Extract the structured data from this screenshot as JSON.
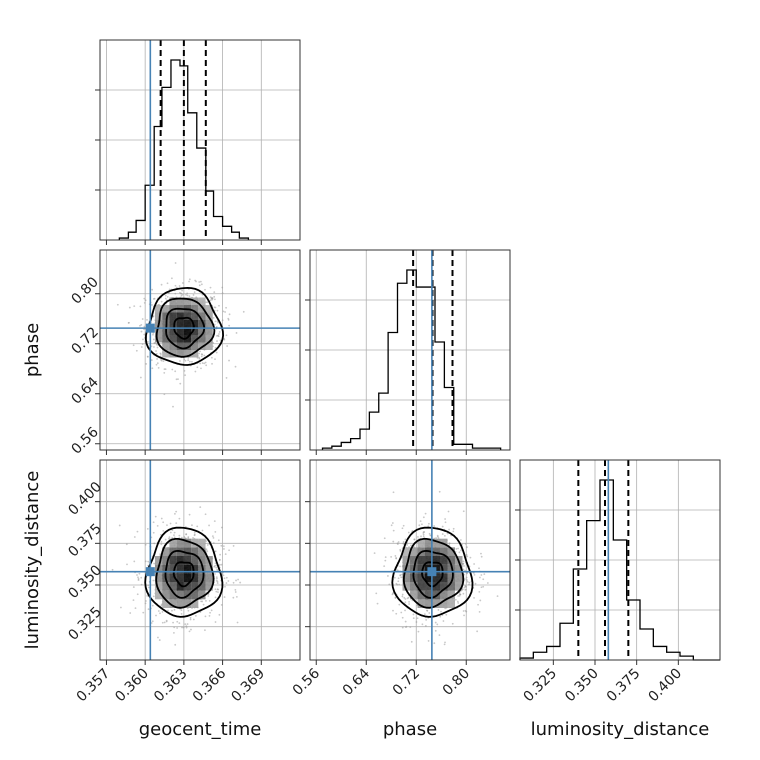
{
  "chart_data": {
    "type": "corner",
    "parameters": [
      "geocent_time",
      "phase",
      "luminosity_distance"
    ],
    "axes": {
      "geocent_time": {
        "label": "geocent_time",
        "range": [
          0.3565,
          0.372
        ],
        "ticks": [
          0.357,
          0.36,
          0.363,
          0.366,
          0.369
        ],
        "tick_labels": [
          "0.357",
          "0.360",
          "0.363",
          "0.366",
          "0.369"
        ]
      },
      "phase": {
        "label": "phase",
        "range": [
          0.55,
          0.87
        ],
        "ticks": [
          0.56,
          0.64,
          0.72,
          0.8
        ],
        "tick_labels": [
          "0.56",
          "0.64",
          "0.72",
          "0.80"
        ]
      },
      "luminosity_distance": {
        "label": "luminosity_distance",
        "range": [
          0.305,
          0.425
        ],
        "ticks": [
          0.325,
          0.35,
          0.375,
          0.4
        ],
        "tick_labels": [
          "0.325",
          "0.350",
          "0.375",
          "0.400"
        ]
      }
    },
    "truths": {
      "geocent_time": 0.3604,
      "phase": 0.745,
      "luminosity_distance": 0.358
    },
    "quantiles": {
      "geocent_time": [
        0.3612,
        0.363,
        0.3647
      ],
      "phase": [
        0.715,
        0.746,
        0.778
      ],
      "luminosity_distance": [
        0.34,
        0.356,
        0.37
      ]
    },
    "means": {
      "geocent_time": 0.363,
      "phase": 0.746,
      "luminosity_distance": 0.357
    },
    "sigmas": {
      "geocent_time": 0.0014,
      "phase": 0.03,
      "luminosity_distance": 0.013
    },
    "histograms": {
      "geocent_time": {
        "bin_edges": [
          0.358,
          0.3587,
          0.3593,
          0.36,
          0.3607,
          0.3613,
          0.362,
          0.3627,
          0.3633,
          0.364,
          0.3647,
          0.3653,
          0.366,
          0.3667,
          0.3673,
          0.368
        ],
        "density": [
          1,
          4,
          10,
          28,
          58,
          78,
          92,
          89,
          65,
          47,
          25,
          12,
          7,
          4,
          1
        ]
      },
      "phase": {
        "bin_edges": [
          0.57,
          0.585,
          0.6,
          0.615,
          0.63,
          0.645,
          0.66,
          0.675,
          0.69,
          0.705,
          0.72,
          0.735,
          0.75,
          0.765,
          0.78,
          0.795,
          0.81,
          0.825,
          0.84,
          0.855
        ],
        "density": [
          1,
          2,
          4,
          6,
          11,
          20,
          30,
          62,
          88,
          95,
          86,
          86,
          57,
          33,
          3,
          3,
          1,
          1,
          1
        ]
      },
      "luminosity_distance": {
        "bin_edges": [
          0.305,
          0.313,
          0.321,
          0.329,
          0.337,
          0.345,
          0.353,
          0.361,
          0.369,
          0.377,
          0.385,
          0.393,
          0.401,
          0.409,
          0.417,
          0.425
        ],
        "density": [
          1,
          4,
          7,
          19,
          47,
          72,
          93,
          62,
          31,
          16,
          7,
          4,
          2,
          0,
          0
        ]
      }
    },
    "legend": "none",
    "grid": true
  }
}
